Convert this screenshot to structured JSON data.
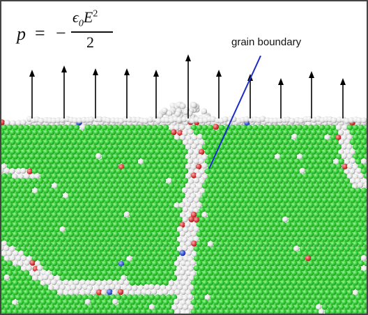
{
  "annotation": {
    "label": "grain boundary"
  },
  "formula": {
    "lhs": "p",
    "equals": "=",
    "minus": "−",
    "numerator_base": "ϵ",
    "numerator_sub": "0",
    "numerator_var": "E",
    "numerator_sup": "2",
    "denominator": "2"
  },
  "colors": {
    "fcc_grain": "#33cc33",
    "grain_boundary_atom": "#e4e4e4",
    "defect_red": "#d83a3a",
    "defect_blue": "#3a55d8",
    "arrow": "#000000",
    "annotation_line": "#1a2acc"
  }
}
